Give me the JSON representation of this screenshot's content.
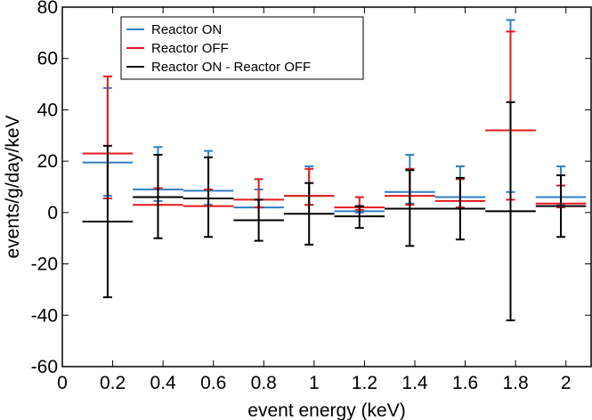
{
  "chart_data": {
    "type": "scatter",
    "title": "",
    "xlabel": "event energy (keV)",
    "ylabel": "events/g/day/keV",
    "xlim": [
      0,
      2.1
    ],
    "ylim": [
      -60,
      80
    ],
    "xticks": [
      0,
      0.2,
      0.4,
      0.6,
      0.8,
      1,
      1.2,
      1.4,
      1.6,
      1.8,
      2
    ],
    "xtick_labels": [
      "0",
      "0.2",
      "0.4",
      "0.6",
      "0.8",
      "1",
      "1.2",
      "1.4",
      "1.6",
      "1.8",
      "2"
    ],
    "yticks": [
      -60,
      -40,
      -20,
      0,
      20,
      40,
      60,
      80
    ],
    "ytick_labels": [
      "-60",
      "-40",
      "-20",
      "0",
      "20",
      "40",
      "60",
      "80"
    ],
    "grid": false,
    "legend_position": "top-left",
    "bin_edges": [
      0.08,
      0.28,
      0.48,
      0.68,
      0.88,
      1.08,
      1.28,
      1.48,
      1.68,
      1.88,
      2.08
    ],
    "series": [
      {
        "name": "Reactor ON",
        "color": "#2e7fc7",
        "x": [
          0.18,
          0.38,
          0.58,
          0.78,
          0.98,
          1.18,
          1.38,
          1.58,
          1.78,
          1.98
        ],
        "y": [
          19.5,
          9.0,
          8.5,
          2.0,
          6.5,
          0.5,
          8.0,
          6.0,
          32.0,
          6.0
        ],
        "err_low": [
          6.5,
          4.5,
          3.0,
          2.0,
          3.0,
          0.0,
          3.5,
          1.5,
          8.0,
          3.0
        ],
        "err_high": [
          48.5,
          25.5,
          24.0,
          9.0,
          18.0,
          2.5,
          22.5,
          18.0,
          75.0,
          18.0
        ]
      },
      {
        "name": "Reactor OFF",
        "color": "#e31a1c",
        "x": [
          0.18,
          0.38,
          0.58,
          0.78,
          0.98,
          1.18,
          1.38,
          1.58,
          1.78,
          1.98
        ],
        "y": [
          23.0,
          3.0,
          2.5,
          5.0,
          6.5,
          2.0,
          6.5,
          4.5,
          32.0,
          3.5
        ],
        "err_low": [
          5.5,
          3.0,
          2.5,
          2.0,
          3.0,
          1.0,
          3.0,
          2.0,
          5.0,
          2.0
        ],
        "err_high": [
          53.0,
          9.5,
          9.0,
          13.0,
          17.0,
          6.0,
          17.0,
          13.0,
          70.5,
          10.5
        ]
      },
      {
        "name": "Reactor ON - Reactor OFF",
        "color": "#000000",
        "x": [
          0.18,
          0.38,
          0.58,
          0.78,
          0.98,
          1.18,
          1.38,
          1.58,
          1.78,
          1.98
        ],
        "y": [
          -3.5,
          6.0,
          5.5,
          -3.0,
          -0.5,
          -1.5,
          1.5,
          1.5,
          0.5,
          2.5
        ],
        "err_low": [
          -33.0,
          -10.0,
          -9.5,
          -11.0,
          -12.5,
          -6.0,
          -13.0,
          -10.5,
          -42.0,
          -9.5
        ],
        "err_high": [
          26.0,
          22.5,
          21.5,
          5.0,
          11.5,
          2.5,
          16.5,
          13.5,
          43.0,
          14.5
        ]
      }
    ]
  }
}
